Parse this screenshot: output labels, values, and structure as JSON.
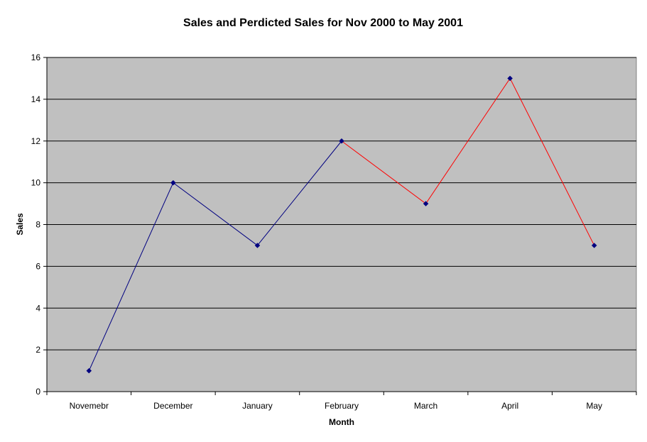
{
  "chart_data": {
    "type": "line",
    "title": "Sales and Perdicted Sales for Nov 2000 to May 2001",
    "xlabel": "Month",
    "ylabel": "Sales",
    "categories": [
      "Novemebr",
      "December",
      "January",
      "February",
      "March",
      "April",
      "May"
    ],
    "ylim": [
      0,
      16
    ],
    "yticks": [
      0,
      2,
      4,
      6,
      8,
      10,
      12,
      14,
      16
    ],
    "grid": true,
    "plot_background": "#c0c0c0",
    "series": [
      {
        "values": [
          1,
          10,
          7,
          12,
          null,
          null,
          null
        ],
        "color": "#000080"
      },
      {
        "values": [
          null,
          null,
          null,
          12,
          9,
          15,
          7
        ],
        "color": "#ff0000"
      }
    ],
    "marker_color": "#000080"
  }
}
